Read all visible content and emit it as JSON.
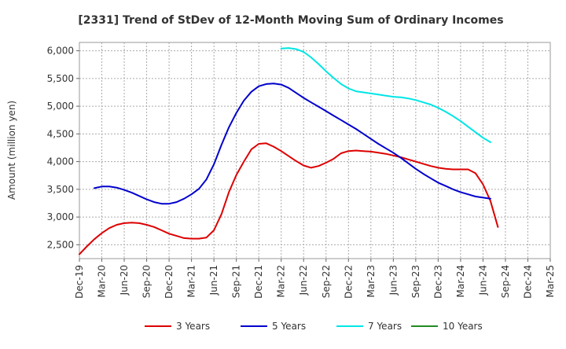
{
  "chart_data": {
    "type": "line",
    "title": "[2331]  Trend of StDev of 12-Month Moving Sum of Ordinary Incomes",
    "xlabel": "",
    "ylabel": "Amount (million yen)",
    "x_ticks": [
      "Dec-19",
      "Mar-20",
      "Jun-20",
      "Sep-20",
      "Dec-20",
      "Mar-21",
      "Jun-21",
      "Sep-21",
      "Dec-21",
      "Mar-22",
      "Jun-22",
      "Sep-22",
      "Dec-22",
      "Mar-23",
      "Jun-23",
      "Sep-23",
      "Dec-23",
      "Mar-24",
      "Jun-24",
      "Sep-24",
      "Dec-24",
      "Mar-25"
    ],
    "y_ticks": [
      "2,500",
      "3,000",
      "3,500",
      "4,000",
      "4,500",
      "5,000",
      "5,500",
      "6,000"
    ],
    "y_tick_values": [
      2500,
      3000,
      3500,
      4000,
      4500,
      5000,
      5500,
      6000
    ],
    "ylim": [
      2250,
      6150
    ],
    "grid": true,
    "legend_position": "bottom",
    "series": [
      {
        "name": "3 Years",
        "color": "#dd0000",
        "start_index": 0,
        "values": [
          2330,
          2470,
          2600,
          2710,
          2800,
          2860,
          2890,
          2900,
          2890,
          2860,
          2820,
          2760,
          2700,
          2660,
          2620,
          2610,
          2610,
          2630,
          2760,
          3050,
          3450,
          3760,
          4000,
          4220,
          4320,
          4330,
          4270,
          4190,
          4100,
          4010,
          3930,
          3890,
          3920,
          3980,
          4050,
          4150,
          4190,
          4200,
          4190,
          4180,
          4160,
          4140,
          4110,
          4080,
          4040,
          4000,
          3960,
          3920,
          3890,
          3870,
          3860,
          3860,
          3860,
          3790,
          3590,
          3290,
          2820
        ]
      },
      {
        "name": "5 Years",
        "color": "#0000cc",
        "start_index": 2,
        "values": [
          3520,
          3550,
          3550,
          3530,
          3490,
          3440,
          3380,
          3320,
          3270,
          3240,
          3240,
          3270,
          3330,
          3410,
          3510,
          3680,
          3950,
          4300,
          4620,
          4880,
          5100,
          5260,
          5360,
          5400,
          5410,
          5390,
          5330,
          5240,
          5150,
          5070,
          4990,
          4910,
          4830,
          4750,
          4670,
          4590,
          4500,
          4410,
          4320,
          4240,
          4160,
          4070,
          3970,
          3870,
          3780,
          3700,
          3620,
          3560,
          3500,
          3450,
          3410,
          3370,
          3350,
          3330
        ]
      },
      {
        "name": "7 Years",
        "color": "#00e5e5",
        "start_index": 27,
        "values": [
          6040,
          6050,
          6030,
          5980,
          5880,
          5760,
          5630,
          5510,
          5400,
          5320,
          5270,
          5250,
          5230,
          5210,
          5190,
          5170,
          5160,
          5140,
          5110,
          5070,
          5030,
          4970,
          4900,
          4820,
          4730,
          4630,
          4530,
          4430,
          4350
        ]
      },
      {
        "name": "10 Years",
        "color": "#228b22",
        "start_index": 0,
        "values": []
      }
    ]
  }
}
